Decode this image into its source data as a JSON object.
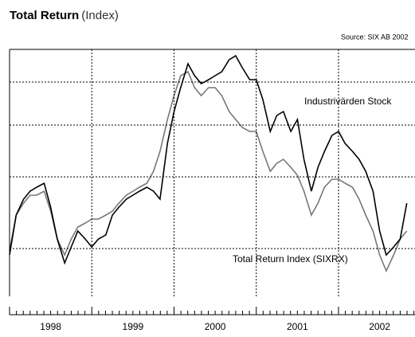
{
  "chart_data": {
    "type": "line",
    "title": "Total Return",
    "subtitle": "(Index)",
    "source": "Source: SIX AB 2002",
    "annotations": [
      "Industrivärden Stock",
      "Total Return Index (SIXRX)"
    ],
    "x": [
      1998.0,
      1998.08,
      1998.17,
      1998.25,
      1998.33,
      1998.42,
      1998.5,
      1998.58,
      1998.67,
      1998.75,
      1998.83,
      1998.92,
      1999.0,
      1999.08,
      1999.17,
      1999.25,
      1999.33,
      1999.42,
      1999.5,
      1999.58,
      1999.67,
      1999.75,
      1999.83,
      1999.92,
      2000.0,
      2000.08,
      2000.17,
      2000.25,
      2000.33,
      2000.42,
      2000.5,
      2000.58,
      2000.67,
      2000.75,
      2000.83,
      2000.92,
      2001.0,
      2001.08,
      2001.17,
      2001.25,
      2001.33,
      2001.42,
      2001.5,
      2001.58,
      2001.67,
      2001.75,
      2001.83,
      2001.92,
      2002.0,
      2002.08,
      2002.17,
      2002.25,
      2002.33,
      2002.42,
      2002.5,
      2002.58,
      2002.67,
      2002.75,
      2002.83
    ],
    "series": [
      {
        "name": "Industrivärden Stock",
        "color": "#000000",
        "width": 1.6,
        "values": [
          52,
          102,
          122,
          132,
          137,
          142,
          112,
          72,
          42,
          62,
          82,
          72,
          62,
          72,
          77,
          102,
          112,
          122,
          127,
          132,
          137,
          132,
          122,
          192,
          232,
          262,
          292,
          277,
          267,
          272,
          277,
          282,
          297,
          302,
          287,
          272,
          272,
          247,
          207,
          227,
          232,
          207,
          222,
          172,
          132,
          162,
          182,
          202,
          207,
          192,
          182,
          172,
          157,
          132,
          82,
          52,
          62,
          72,
          117
        ]
      },
      {
        "name": "Total Return Index (SIXRX)",
        "color": "#777777",
        "width": 1.6,
        "values": [
          57,
          102,
          117,
          127,
          127,
          132,
          107,
          72,
          52,
          72,
          87,
          92,
          97,
          97,
          102,
          107,
          117,
          127,
          132,
          137,
          142,
          157,
          182,
          222,
          252,
          277,
          282,
          262,
          252,
          262,
          262,
          252,
          232,
          222,
          212,
          207,
          207,
          182,
          157,
          167,
          172,
          162,
          152,
          132,
          102,
          117,
          137,
          147,
          147,
          142,
          137,
          122,
          102,
          82,
          52,
          32,
          52,
          72,
          82
        ]
      }
    ],
    "xlim": [
      1998,
      2002.93
    ],
    "xticks": [
      1998,
      1999,
      2000,
      2001,
      2002
    ],
    "ylim": [
      0,
      310
    ],
    "yticks": [
      60,
      150,
      215,
      269
    ],
    "grid": true
  }
}
